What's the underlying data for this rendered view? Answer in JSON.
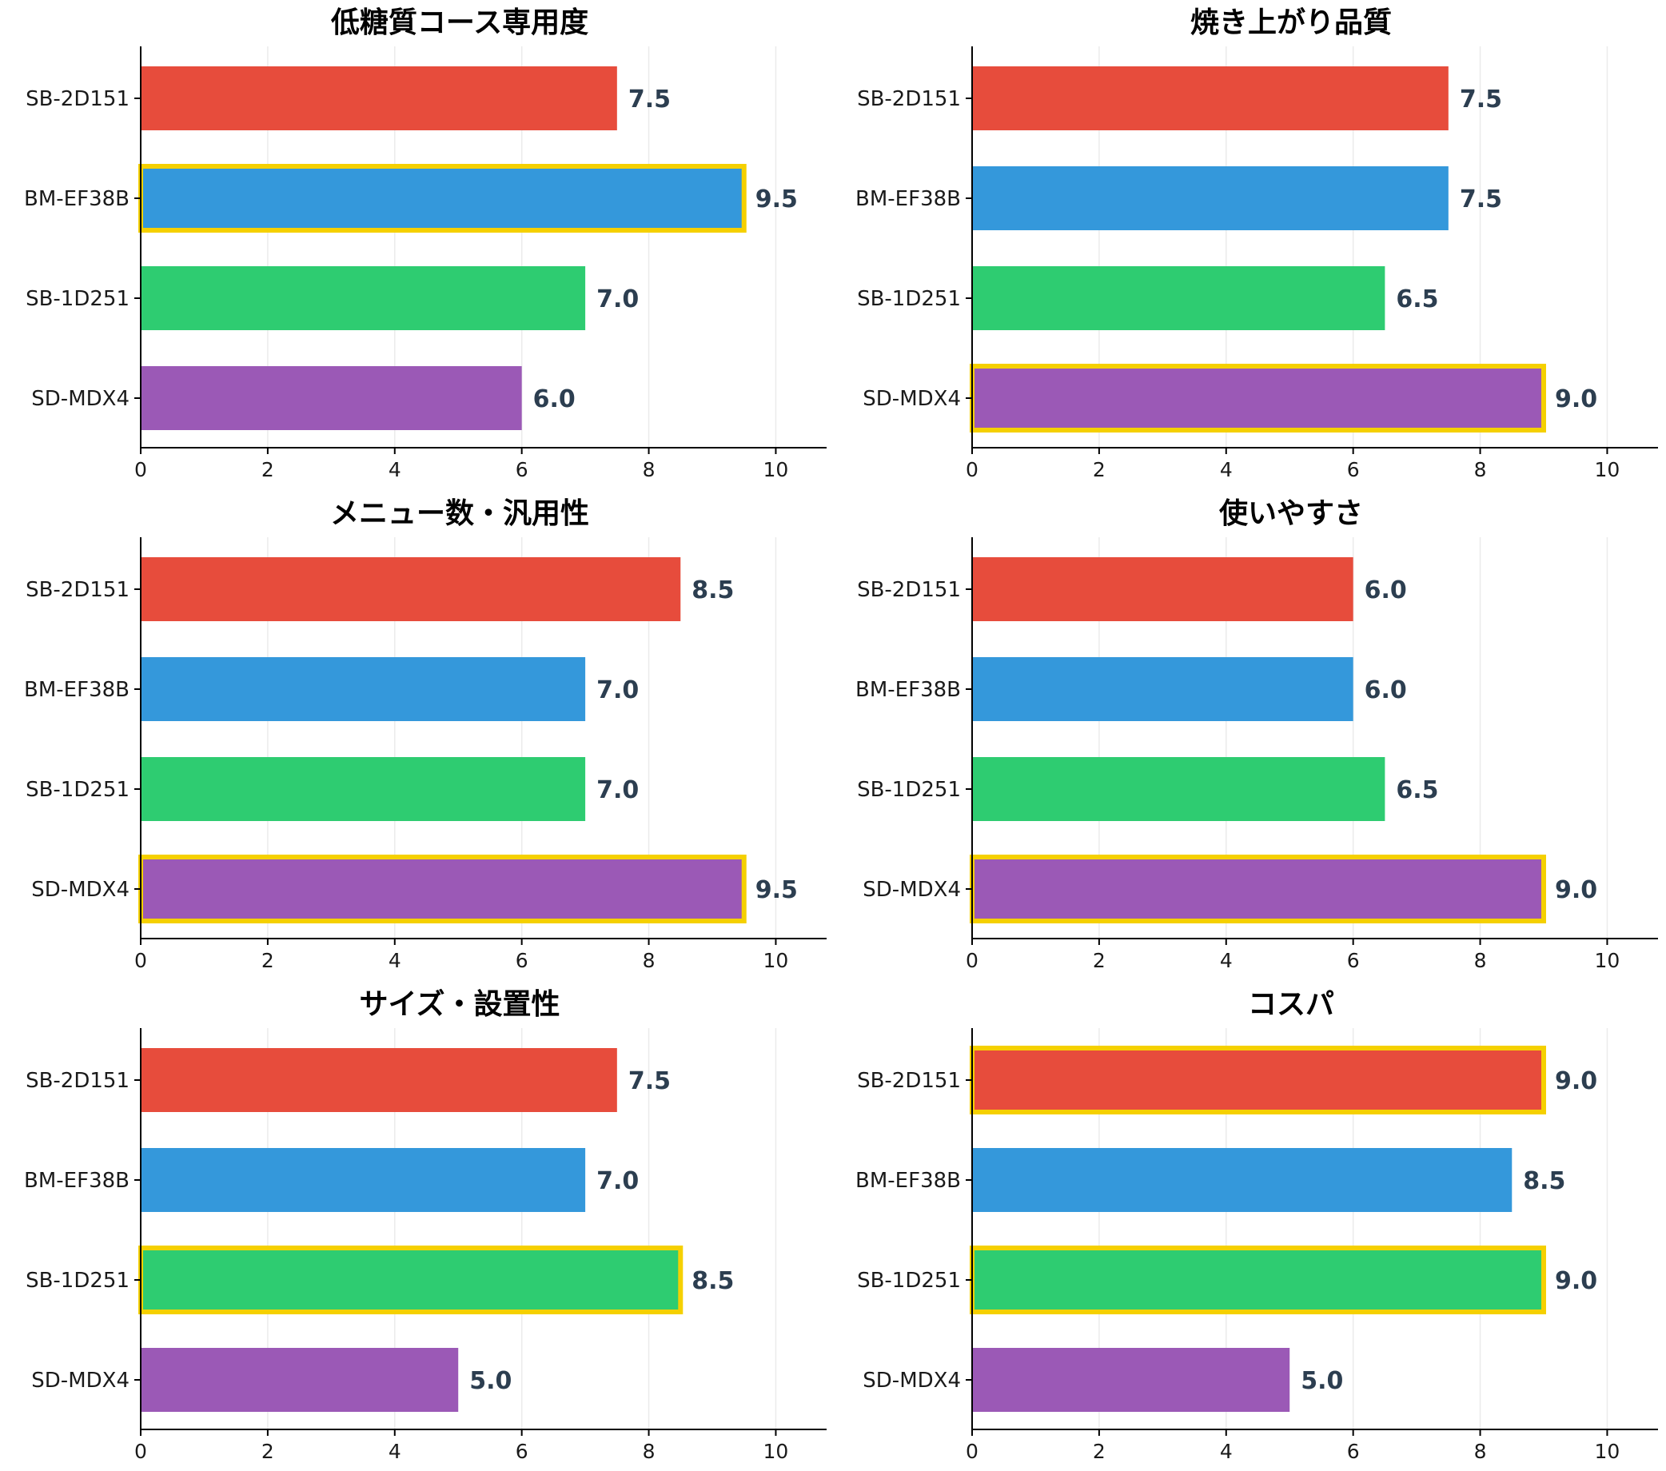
{
  "colors": {
    "SB-2D151": "#e74c3c",
    "BM-EF38B": "#3498db",
    "SB-1D251": "#2ecc71",
    "SD-MDX4": "#9b59b6",
    "highlight_outline": "#f5d000",
    "value_text": "#2c3e50"
  },
  "chart_data": [
    {
      "type": "bar",
      "orientation": "horizontal",
      "title": "低糖質コース専用度",
      "categories": [
        "SB-2D151",
        "BM-EF38B",
        "SB-1D251",
        "SD-MDX4"
      ],
      "values": [
        7.5,
        9.5,
        7.0,
        6.0
      ],
      "value_labels": [
        "7.5",
        "9.5",
        "7.0",
        "6.0"
      ],
      "highlighted": [
        "BM-EF38B"
      ],
      "xlim": [
        0,
        10.8
      ],
      "xticks": [
        0,
        2,
        4,
        6,
        8,
        10
      ],
      "grid": "vertical"
    },
    {
      "type": "bar",
      "orientation": "horizontal",
      "title": "焼き上がり品質",
      "categories": [
        "SB-2D151",
        "BM-EF38B",
        "SB-1D251",
        "SD-MDX4"
      ],
      "values": [
        7.5,
        7.5,
        6.5,
        9.0
      ],
      "value_labels": [
        "7.5",
        "7.5",
        "6.5",
        "9.0"
      ],
      "highlighted": [
        "SD-MDX4"
      ],
      "xlim": [
        0,
        10.8
      ],
      "xticks": [
        0,
        2,
        4,
        6,
        8,
        10
      ],
      "grid": "vertical"
    },
    {
      "type": "bar",
      "orientation": "horizontal",
      "title": "メニュー数・汎用性",
      "categories": [
        "SB-2D151",
        "BM-EF38B",
        "SB-1D251",
        "SD-MDX4"
      ],
      "values": [
        8.5,
        7.0,
        7.0,
        9.5
      ],
      "value_labels": [
        "8.5",
        "7.0",
        "7.0",
        "9.5"
      ],
      "highlighted": [
        "SD-MDX4"
      ],
      "xlim": [
        0,
        10.8
      ],
      "xticks": [
        0,
        2,
        4,
        6,
        8,
        10
      ],
      "grid": "vertical"
    },
    {
      "type": "bar",
      "orientation": "horizontal",
      "title": "使いやすさ",
      "categories": [
        "SB-2D151",
        "BM-EF38B",
        "SB-1D251",
        "SD-MDX4"
      ],
      "values": [
        6.0,
        6.0,
        6.5,
        9.0
      ],
      "value_labels": [
        "6.0",
        "6.0",
        "6.5",
        "9.0"
      ],
      "highlighted": [
        "SD-MDX4"
      ],
      "xlim": [
        0,
        10.8
      ],
      "xticks": [
        0,
        2,
        4,
        6,
        8,
        10
      ],
      "grid": "vertical"
    },
    {
      "type": "bar",
      "orientation": "horizontal",
      "title": "サイズ・設置性",
      "categories": [
        "SB-2D151",
        "BM-EF38B",
        "SB-1D251",
        "SD-MDX4"
      ],
      "values": [
        7.5,
        7.0,
        8.5,
        5.0
      ],
      "value_labels": [
        "7.5",
        "7.0",
        "8.5",
        "5.0"
      ],
      "highlighted": [
        "SB-1D251"
      ],
      "xlim": [
        0,
        10.8
      ],
      "xticks": [
        0,
        2,
        4,
        6,
        8,
        10
      ],
      "grid": "vertical"
    },
    {
      "type": "bar",
      "orientation": "horizontal",
      "title": "コスパ",
      "categories": [
        "SB-2D151",
        "BM-EF38B",
        "SB-1D251",
        "SD-MDX4"
      ],
      "values": [
        9.0,
        8.5,
        9.0,
        5.0
      ],
      "value_labels": [
        "9.0",
        "8.5",
        "9.0",
        "5.0"
      ],
      "highlighted": [
        "SB-2D151",
        "SB-1D251"
      ],
      "xlim": [
        0,
        10.8
      ],
      "xticks": [
        0,
        2,
        4,
        6,
        8,
        10
      ],
      "grid": "vertical"
    }
  ]
}
